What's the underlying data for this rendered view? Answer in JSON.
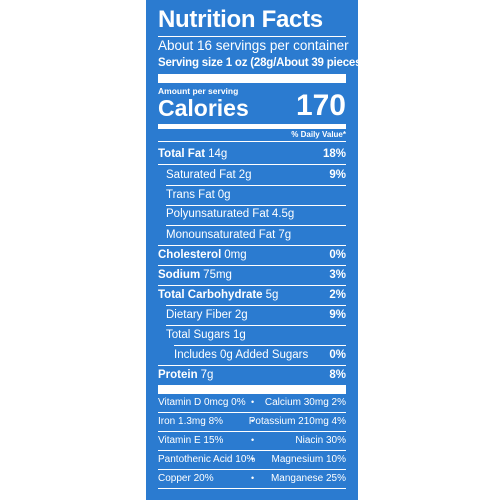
{
  "label": {
    "title": "Nutrition Facts",
    "servings_per_container": "About 16 servings per container",
    "serving_size": "Serving size 1 oz (28g/About 39 pieces)",
    "amount_per_serving": "Amount per serving",
    "calories_label": "Calories",
    "calories_value": "170",
    "daily_value_header": "% Daily Value*"
  },
  "nutrients": [
    {
      "name": "Total Fat",
      "amount": "14g",
      "dv": "18%"
    },
    {
      "name": "Saturated Fat",
      "amount": "2g",
      "dv": "9%"
    },
    {
      "name": "Trans Fat",
      "amount": "0g",
      "dv": ""
    },
    {
      "name": "Polyunsaturated Fat",
      "amount": "4.5g",
      "dv": ""
    },
    {
      "name": "Monounsaturated Fat",
      "amount": "7g",
      "dv": ""
    },
    {
      "name": "Cholesterol",
      "amount": "0mg",
      "dv": "0%"
    },
    {
      "name": "Sodium",
      "amount": "75mg",
      "dv": "3%"
    },
    {
      "name": "Total Carbohydrate",
      "amount": "5g",
      "dv": "2%"
    },
    {
      "name": "Dietary Fiber",
      "amount": "2g",
      "dv": "9%"
    },
    {
      "name": "Total Sugars",
      "amount": "1g",
      "dv": ""
    },
    {
      "name": "Includes 0g Added Sugars",
      "amount": "",
      "dv": "0%"
    },
    {
      "name": "Protein",
      "amount": "7g",
      "dv": "8%"
    }
  ],
  "vitamins": [
    {
      "left": "Vitamin D 0mcg 0%",
      "right": "Calcium 30mg 2%"
    },
    {
      "left": "Iron 1.3mg 8%",
      "right": "Potassium 210mg 4%"
    },
    {
      "left": "Vitamin E 15%",
      "right": "Niacin 30%"
    },
    {
      "left": "Pantothenic Acid 10%",
      "right": "Magnesium 10%"
    },
    {
      "left": "Copper 20%",
      "right": "Manganese 25%"
    }
  ],
  "separator": "•",
  "colors": {
    "background": "#2b7bd0",
    "text": "#ffffff"
  }
}
